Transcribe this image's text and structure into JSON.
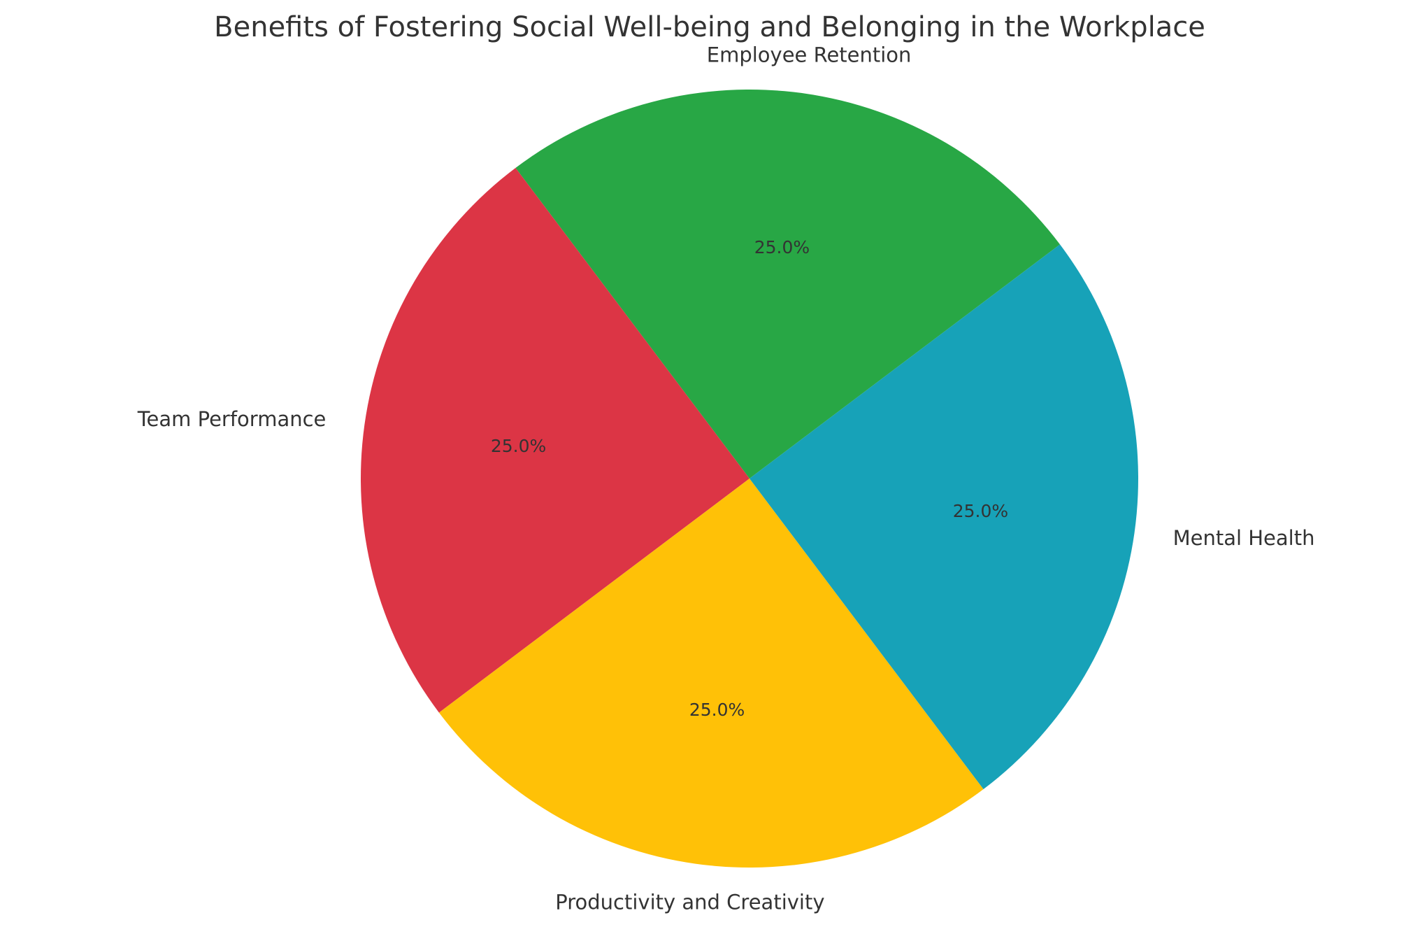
{
  "chart_data": {
    "type": "pie",
    "title": "Benefits of Fostering Social Well-being and Belonging in the Workplace",
    "slices": [
      {
        "label": "Employee Retention",
        "value": 25.0,
        "pct_label": "25.0%",
        "color": "#28a745"
      },
      {
        "label": "Team Performance",
        "value": 25.0,
        "pct_label": "25.0%",
        "color": "#dc3545"
      },
      {
        "label": "Productivity and Creativity",
        "value": 25.0,
        "pct_label": "25.0%",
        "color": "#ffc107"
      },
      {
        "label": "Mental Health",
        "value": 25.0,
        "pct_label": "25.0%",
        "color": "#17a2b8"
      }
    ],
    "legend": "none",
    "grid": false
  }
}
